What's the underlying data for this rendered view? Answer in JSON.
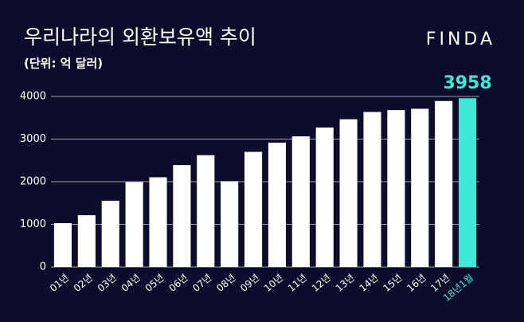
{
  "chart_data": {
    "type": "bar",
    "title": "우리나라의 외환보유액 추이",
    "subtitle": "(단위: 억 달러)",
    "brand": "FINDA",
    "categories": [
      "01년",
      "02년",
      "03년",
      "04년",
      "05년",
      "06년",
      "07년",
      "08년",
      "09년",
      "10년",
      "11년",
      "12년",
      "13년",
      "14년",
      "15년",
      "16년",
      "17년",
      "18년1월"
    ],
    "values": [
      1028,
      1214,
      1554,
      1991,
      2104,
      2390,
      2622,
      2012,
      2700,
      2916,
      3064,
      3270,
      3465,
      3636,
      3680,
      3711,
      3893,
      3958
    ],
    "color": "#ffffff",
    "highlight_color": "#3de8d6",
    "ylim": [
      0,
      4000
    ],
    "yticks": [
      0,
      1000,
      2000,
      3000,
      4000
    ],
    "grid": true
  }
}
